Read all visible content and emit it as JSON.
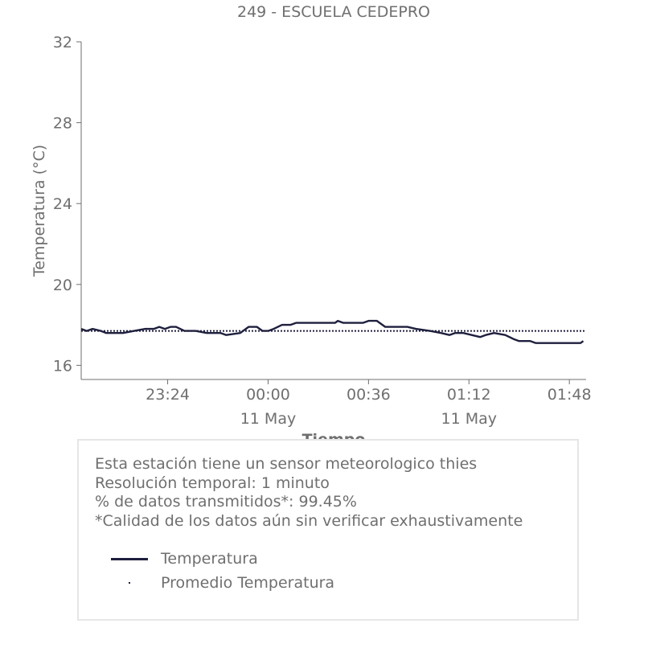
{
  "chart_data": {
    "type": "line",
    "title": "249 - ESCUELA CEDEPRO",
    "xlabel": "Tiempo",
    "ylabel": "Temperatura (°C)",
    "ylim": [
      15.3,
      32
    ],
    "yticks": [
      16,
      20,
      24,
      28,
      32
    ],
    "xlim": [
      "2024-05-10T22:53",
      "2024-05-11T01:54"
    ],
    "xticks": [
      {
        "time": "2024-05-10T23:24",
        "label": "23:24",
        "sublabel": ""
      },
      {
        "time": "2024-05-11T00:00",
        "label": "00:00",
        "sublabel": "11 May"
      },
      {
        "time": "2024-05-11T00:36",
        "label": "00:36",
        "sublabel": ""
      },
      {
        "time": "2024-05-11T01:12",
        "label": "01:12",
        "sublabel": "11 May"
      },
      {
        "time": "2024-05-11T01:48",
        "label": "01:48",
        "sublabel": ""
      }
    ],
    "grid": false,
    "series": [
      {
        "name": "Temperatura",
        "style": "solid",
        "color": "#1e1f3d",
        "points": [
          [
            "2024-05-10T22:53",
            17.8
          ],
          [
            "2024-05-10T22:55",
            17.7
          ],
          [
            "2024-05-10T22:57",
            17.8
          ],
          [
            "2024-05-10T23:00",
            17.7
          ],
          [
            "2024-05-10T23:02",
            17.6
          ],
          [
            "2024-05-10T23:08",
            17.6
          ],
          [
            "2024-05-10T23:12",
            17.7
          ],
          [
            "2024-05-10T23:16",
            17.8
          ],
          [
            "2024-05-10T23:19",
            17.8
          ],
          [
            "2024-05-10T23:21",
            17.9
          ],
          [
            "2024-05-10T23:23",
            17.8
          ],
          [
            "2024-05-10T23:25",
            17.9
          ],
          [
            "2024-05-10T23:27",
            17.9
          ],
          [
            "2024-05-10T23:30",
            17.7
          ],
          [
            "2024-05-10T23:34",
            17.7
          ],
          [
            "2024-05-10T23:38",
            17.6
          ],
          [
            "2024-05-10T23:43",
            17.6
          ],
          [
            "2024-05-10T23:45",
            17.5
          ],
          [
            "2024-05-10T23:50",
            17.6
          ],
          [
            "2024-05-10T23:53",
            17.9
          ],
          [
            "2024-05-10T23:56",
            17.9
          ],
          [
            "2024-05-10T23:58",
            17.7
          ],
          [
            "2024-05-11T00:00",
            17.7
          ],
          [
            "2024-05-11T00:02",
            17.8
          ],
          [
            "2024-05-11T00:05",
            18.0
          ],
          [
            "2024-05-11T00:08",
            18.0
          ],
          [
            "2024-05-11T00:10",
            18.1
          ],
          [
            "2024-05-11T00:14",
            18.1
          ],
          [
            "2024-05-11T00:24",
            18.1
          ],
          [
            "2024-05-11T00:25",
            18.2
          ],
          [
            "2024-05-11T00:27",
            18.1
          ],
          [
            "2024-05-11T00:30",
            18.1
          ],
          [
            "2024-05-11T00:34",
            18.1
          ],
          [
            "2024-05-11T00:36",
            18.2
          ],
          [
            "2024-05-11T00:39",
            18.2
          ],
          [
            "2024-05-11T00:42",
            17.9
          ],
          [
            "2024-05-11T00:50",
            17.9
          ],
          [
            "2024-05-11T00:53",
            17.8
          ],
          [
            "2024-05-11T00:58",
            17.7
          ],
          [
            "2024-05-11T01:02",
            17.6
          ],
          [
            "2024-05-11T01:05",
            17.5
          ],
          [
            "2024-05-11T01:07",
            17.6
          ],
          [
            "2024-05-11T01:10",
            17.6
          ],
          [
            "2024-05-11T01:13",
            17.5
          ],
          [
            "2024-05-11T01:16",
            17.4
          ],
          [
            "2024-05-11T01:18",
            17.5
          ],
          [
            "2024-05-11T01:21",
            17.6
          ],
          [
            "2024-05-11T01:25",
            17.5
          ],
          [
            "2024-05-11T01:28",
            17.3
          ],
          [
            "2024-05-11T01:30",
            17.2
          ],
          [
            "2024-05-11T01:34",
            17.2
          ],
          [
            "2024-05-11T01:36",
            17.1
          ],
          [
            "2024-05-11T01:52",
            17.1
          ],
          [
            "2024-05-11T01:53",
            17.2
          ]
        ]
      },
      {
        "name": "Promedio Temperatura",
        "style": "dotted",
        "color": "#1e1f3d",
        "constant": 17.7
      }
    ]
  },
  "info": {
    "lines": [
      "Esta estación tiene un sensor meteorologico thies",
      "Resolución temporal: 1 minuto",
      "% de datos transmitidos*: 99.45%",
      "*Calidad de los datos aún sin verificar exhaustivamente"
    ]
  },
  "legend": {
    "items": [
      {
        "label": "Temperatura",
        "marker": "line"
      },
      {
        "label": "Promedio Temperatura",
        "marker": "dot"
      }
    ]
  }
}
